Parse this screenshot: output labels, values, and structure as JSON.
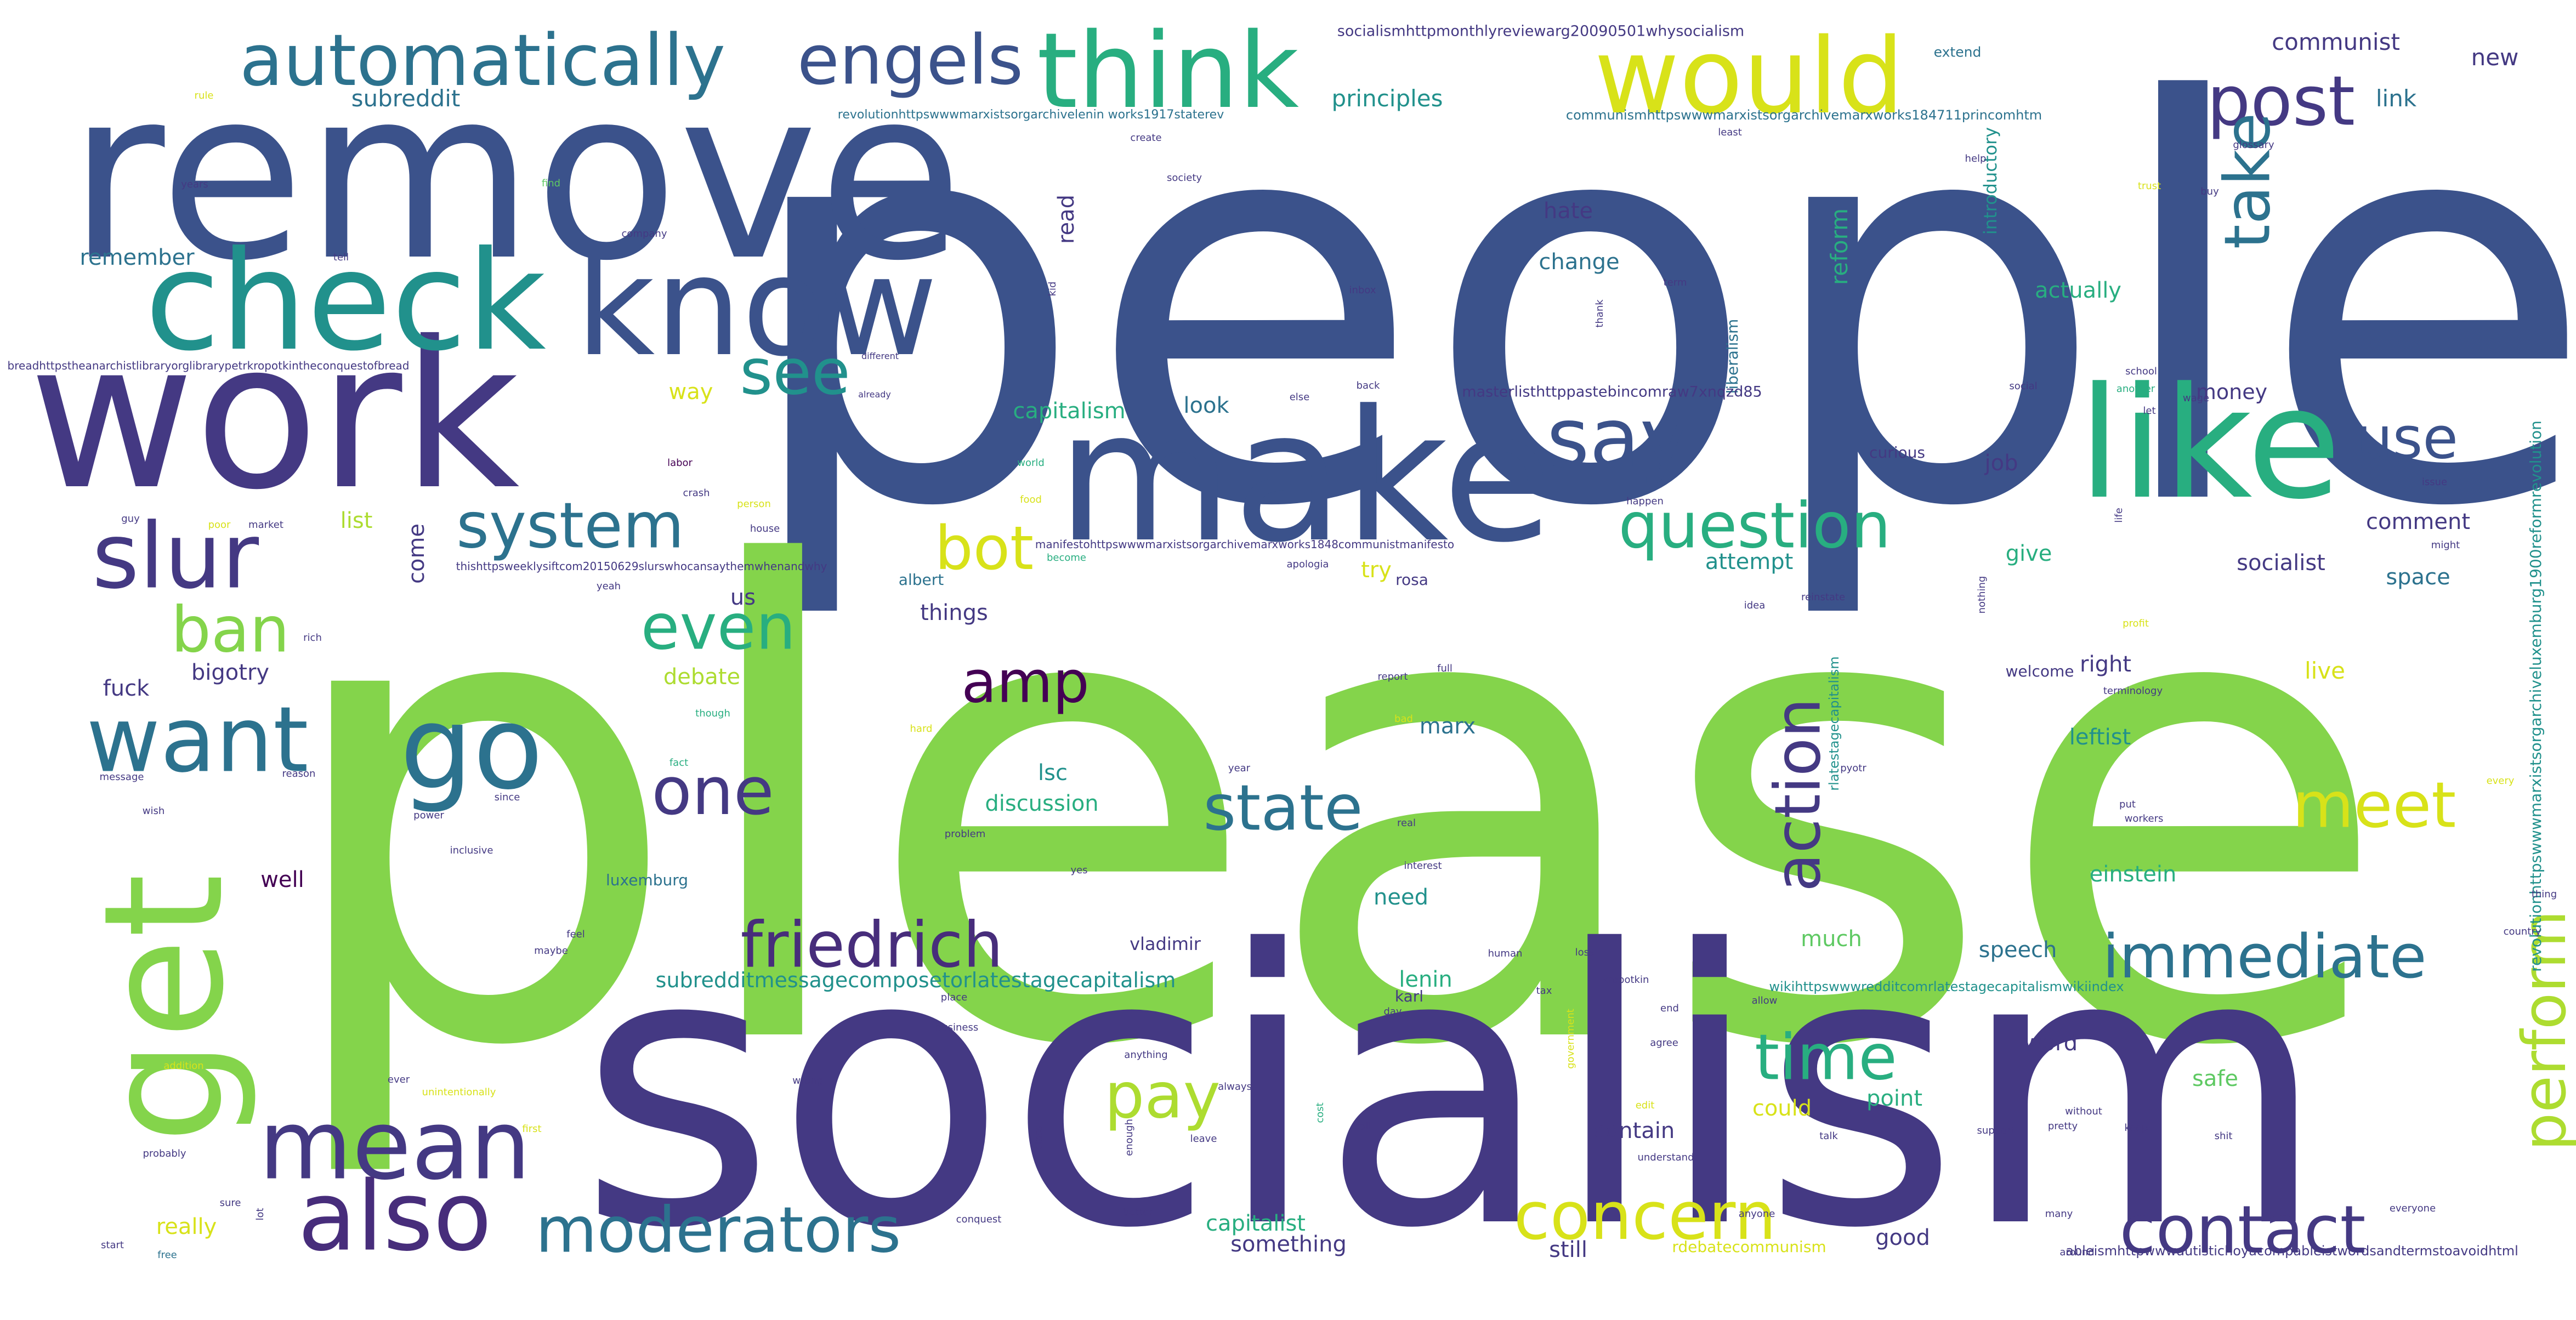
{
  "palette": {
    "background": "#ffffff",
    "colors": [
      "#3b528b",
      "#443983",
      "#2c728e",
      "#21918c",
      "#28ae80",
      "#5ec962",
      "#84d44b",
      "#addc30",
      "#d8e219",
      "#fde725",
      "#472d7b",
      "#440154"
    ]
  },
  "words": [
    {
      "text": "people",
      "c": 0
    },
    {
      "text": "please",
      "c": 6
    },
    {
      "text": "socialism",
      "c": 1
    },
    {
      "text": "remove",
      "c": 0
    },
    {
      "text": "work",
      "c": 1
    },
    {
      "text": "check",
      "c": 3
    },
    {
      "text": "know",
      "c": 0
    },
    {
      "text": "make",
      "c": 0
    },
    {
      "text": "like",
      "c": 4
    },
    {
      "text": "get",
      "c": 6
    },
    {
      "text": "would",
      "c": 8
    },
    {
      "text": "think",
      "c": 4
    },
    {
      "text": "automatically",
      "c": 2
    },
    {
      "text": "engels",
      "c": 0
    },
    {
      "text": "post",
      "c": 1
    },
    {
      "text": "say",
      "c": 0
    },
    {
      "text": "slur",
      "c": 1
    },
    {
      "text": "want",
      "c": 2
    },
    {
      "text": "go",
      "c": 2
    },
    {
      "text": "mean",
      "c": 1
    },
    {
      "text": "also",
      "c": 10
    },
    {
      "text": "moderators",
      "c": 2
    },
    {
      "text": "concern",
      "c": 8
    },
    {
      "text": "contact",
      "c": 1
    },
    {
      "text": "question",
      "c": 4
    },
    {
      "text": "use",
      "c": 0
    },
    {
      "text": "see",
      "c": 3
    },
    {
      "text": "system",
      "c": 2
    },
    {
      "text": "even",
      "c": 4
    },
    {
      "text": "bot",
      "c": 8
    },
    {
      "text": "amp",
      "c": 11
    },
    {
      "text": "one",
      "c": 1
    },
    {
      "text": "state",
      "c": 2
    },
    {
      "text": "friedrich",
      "c": 10
    },
    {
      "text": "immediate",
      "c": 2
    },
    {
      "text": "meet",
      "c": 8
    },
    {
      "text": "action",
      "c": 1
    },
    {
      "text": "take",
      "c": 2
    },
    {
      "text": "time",
      "c": 4
    },
    {
      "text": "pay",
      "c": 7
    },
    {
      "text": "perform",
      "c": 7
    },
    {
      "text": "ban",
      "c": 6
    },
    {
      "text": "socialismhttpmonthlyreviewarg20090501whysocialism",
      "c": 1
    },
    {
      "text": "communist",
      "c": 1
    },
    {
      "text": "new",
      "c": 1
    },
    {
      "text": "link",
      "c": 2
    },
    {
      "text": "subreddit",
      "c": 2
    },
    {
      "text": "principles",
      "c": 3
    },
    {
      "text": "communismhttpswwwmarxistsorgarchivemarxworks184711princomhtm",
      "c": 2
    },
    {
      "text": "revolutionhttpswwwmarxistsorgarchivelenin works1917staterev",
      "c": 2
    },
    {
      "text": "hate",
      "c": 1
    },
    {
      "text": "change",
      "c": 2
    },
    {
      "text": "reform",
      "c": 4
    },
    {
      "text": "actually",
      "c": 4
    },
    {
      "text": "introductory",
      "c": 3
    },
    {
      "text": "liberalism",
      "c": 2
    },
    {
      "text": "masterlisthttppastebincomraw7xnqzd85",
      "c": 1
    },
    {
      "text": "money",
      "c": 1
    },
    {
      "text": "capitalism",
      "c": 4
    },
    {
      "text": "look",
      "c": 2
    },
    {
      "text": "remember",
      "c": 2
    },
    {
      "text": "way",
      "c": 8
    },
    {
      "text": "read",
      "c": 1
    },
    {
      "text": "job",
      "c": 1
    },
    {
      "text": "curious",
      "c": 1
    },
    {
      "text": "comment",
      "c": 1
    },
    {
      "text": "socialist",
      "c": 1
    },
    {
      "text": "space",
      "c": 2
    },
    {
      "text": "list",
      "c": 7
    },
    {
      "text": "come",
      "c": 1
    },
    {
      "text": "us",
      "c": 1
    },
    {
      "text": "attempt",
      "c": 3
    },
    {
      "text": "give",
      "c": 4
    },
    {
      "text": "try",
      "c": 8
    },
    {
      "text": "rosa",
      "c": 1
    },
    {
      "text": "albert",
      "c": 2
    },
    {
      "text": "things",
      "c": 1
    },
    {
      "text": "bigotry",
      "c": 1
    },
    {
      "text": "fuck",
      "c": 1
    },
    {
      "text": "debate",
      "c": 7
    },
    {
      "text": "right",
      "c": 1
    },
    {
      "text": "welcome",
      "c": 1
    },
    {
      "text": "live",
      "c": 8
    },
    {
      "text": "marx",
      "c": 2
    },
    {
      "text": "leftist",
      "c": 3
    },
    {
      "text": "lsc",
      "c": 3
    },
    {
      "text": "discussion",
      "c": 4
    },
    {
      "text": "well",
      "c": 11
    },
    {
      "text": "luxemburg",
      "c": 2
    },
    {
      "text": "need",
      "c": 3
    },
    {
      "text": "einstein",
      "c": 4
    },
    {
      "text": "vladimir",
      "c": 1
    },
    {
      "text": "much",
      "c": 5
    },
    {
      "text": "speech",
      "c": 2
    },
    {
      "text": "lenin",
      "c": 4
    },
    {
      "text": "subredditmessagecomposetorlatestagecapitalism",
      "c": 3
    },
    {
      "text": "wikihttpswwwredditcomrlatestagecapitalismwikiindex",
      "c": 3
    },
    {
      "text": "karl",
      "c": 1
    },
    {
      "text": "word",
      "c": 1
    },
    {
      "text": "could",
      "c": 8
    },
    {
      "text": "point",
      "c": 4
    },
    {
      "text": "contain",
      "c": 1
    },
    {
      "text": "safe",
      "c": 5
    },
    {
      "text": "really",
      "c": 8
    },
    {
      "text": "capitalist",
      "c": 4
    },
    {
      "text": "something",
      "c": 1
    },
    {
      "text": "still",
      "c": 1
    },
    {
      "text": "good",
      "c": 1
    },
    {
      "text": "rdebatecommunism",
      "c": 8
    },
    {
      "text": "ableismhttpwwwautistichoyacompableistwordsandtermstoavoidhtml",
      "c": 1
    },
    {
      "text": "thishttpsweeklysiftcom20150629slurswhocansaythemwhenandwhy",
      "c": 1
    },
    {
      "text": "manifestohttpswwwmarxistsorgarchivemarxworks1848communistmanifesto",
      "c": 1
    },
    {
      "text": "breadhttpstheanarchistlibraryorglibrarypetrkropotkintheconquestofbread",
      "c": 1
    },
    {
      "text": "revolutionhttpswwwmarxistsorgarchiveluxemburg1900reformrevolution",
      "c": 3
    },
    {
      "text": "rlatestagecapitalism",
      "c": 3
    },
    {
      "text": "extend",
      "c": 2
    },
    {
      "text": "glossary",
      "c": 1
    },
    {
      "text": "years",
      "c": 1
    },
    {
      "text": "find",
      "c": 5
    },
    {
      "text": "society",
      "c": 1
    },
    {
      "text": "company",
      "c": 1
    },
    {
      "text": "tell",
      "c": 1
    },
    {
      "text": "kid",
      "c": 1
    },
    {
      "text": "inbox",
      "c": 1
    },
    {
      "text": "term",
      "c": 1
    },
    {
      "text": "thank",
      "c": 1
    },
    {
      "text": "school",
      "c": 1
    },
    {
      "text": "social",
      "c": 1
    },
    {
      "text": "wage",
      "c": 1
    },
    {
      "text": "another",
      "c": 4
    },
    {
      "text": "back",
      "c": 1
    },
    {
      "text": "else",
      "c": 1
    },
    {
      "text": "let",
      "c": 1
    },
    {
      "text": "labor",
      "c": 11
    },
    {
      "text": "crash",
      "c": 1
    },
    {
      "text": "person",
      "c": 8
    },
    {
      "text": "house",
      "c": 1
    },
    {
      "text": "world",
      "c": 4
    },
    {
      "text": "food",
      "c": 8
    },
    {
      "text": "guy",
      "c": 1
    },
    {
      "text": "poor",
      "c": 8
    },
    {
      "text": "market",
      "c": 1
    },
    {
      "text": "happen",
      "c": 1
    },
    {
      "text": "issue",
      "c": 1
    },
    {
      "text": "might",
      "c": 1
    },
    {
      "text": "become",
      "c": 4
    },
    {
      "text": "apologia",
      "c": 1
    },
    {
      "text": "yeah",
      "c": 1
    },
    {
      "text": "rich",
      "c": 1
    },
    {
      "text": "reinstate",
      "c": 1
    },
    {
      "text": "idea",
      "c": 1
    },
    {
      "text": "nothing",
      "c": 1
    },
    {
      "text": "profit",
      "c": 8
    },
    {
      "text": "report",
      "c": 1
    },
    {
      "text": "full",
      "c": 1
    },
    {
      "text": "bad",
      "c": 8
    },
    {
      "text": "terminology",
      "c": 1
    },
    {
      "text": "though",
      "c": 4
    },
    {
      "text": "hard",
      "c": 8
    },
    {
      "text": "message",
      "c": 1
    },
    {
      "text": "reason",
      "c": 1
    },
    {
      "text": "fact",
      "c": 4
    },
    {
      "text": "year",
      "c": 1
    },
    {
      "text": "pyotr",
      "c": 1
    },
    {
      "text": "real",
      "c": 1
    },
    {
      "text": "put",
      "c": 1
    },
    {
      "text": "workers",
      "c": 1
    },
    {
      "text": "every",
      "c": 8
    },
    {
      "text": "wish",
      "c": 1
    },
    {
      "text": "since",
      "c": 1
    },
    {
      "text": "power",
      "c": 1
    },
    {
      "text": "problem",
      "c": 1
    },
    {
      "text": "inclusive",
      "c": 1
    },
    {
      "text": "interest",
      "c": 1
    },
    {
      "text": "yes",
      "c": 1
    },
    {
      "text": "thing",
      "c": 1
    },
    {
      "text": "country",
      "c": 1
    },
    {
      "text": "feel",
      "c": 1
    },
    {
      "text": "maybe",
      "c": 1
    },
    {
      "text": "loss",
      "c": 1
    },
    {
      "text": "kropotkin",
      "c": 1
    },
    {
      "text": "human",
      "c": 1
    },
    {
      "text": "tax",
      "c": 1
    },
    {
      "text": "end",
      "c": 1
    },
    {
      "text": "allow",
      "c": 1
    },
    {
      "text": "place",
      "c": 1
    },
    {
      "text": "day",
      "c": 1
    },
    {
      "text": "business",
      "c": 1
    },
    {
      "text": "agree",
      "c": 1
    },
    {
      "text": "anything",
      "c": 1
    },
    {
      "text": "addition",
      "c": 8
    },
    {
      "text": "wrong",
      "c": 1
    },
    {
      "text": "always",
      "c": 1
    },
    {
      "text": "cost",
      "c": 4
    },
    {
      "text": "edit",
      "c": 8
    },
    {
      "text": "call",
      "c": 1
    },
    {
      "text": "class",
      "c": 1
    },
    {
      "text": "enough",
      "c": 1
    },
    {
      "text": "leave",
      "c": 1
    },
    {
      "text": "first",
      "c": 8
    },
    {
      "text": "talk",
      "c": 1
    },
    {
      "text": "understand",
      "c": 1
    },
    {
      "text": "support",
      "c": 1
    },
    {
      "text": "pretty",
      "c": 1
    },
    {
      "text": "without",
      "c": 1
    },
    {
      "text": "keep",
      "c": 1
    },
    {
      "text": "shit",
      "c": 1
    },
    {
      "text": "probably",
      "c": 1
    },
    {
      "text": "sure",
      "c": 1
    },
    {
      "text": "lot",
      "c": 1
    },
    {
      "text": "start",
      "c": 1
    },
    {
      "text": "free",
      "c": 2
    },
    {
      "text": "conquest",
      "c": 1
    },
    {
      "text": "better",
      "c": 1
    },
    {
      "text": "anyone",
      "c": 1
    },
    {
      "text": "many",
      "c": 1
    },
    {
      "text": "around",
      "c": 1
    },
    {
      "text": "everyone",
      "c": 1
    },
    {
      "text": "ever",
      "c": 1
    },
    {
      "text": "rule",
      "c": 8
    },
    {
      "text": "create",
      "c": 1
    },
    {
      "text": "least",
      "c": 1
    },
    {
      "text": "help",
      "c": 1
    },
    {
      "text": "buy",
      "c": 1
    },
    {
      "text": "life",
      "c": 1
    },
    {
      "text": "trust",
      "c": 8
    },
    {
      "text": "already",
      "c": 1
    },
    {
      "text": "different",
      "c": 1
    },
    {
      "text": "unintentionally",
      "c": 8
    },
    {
      "text": "government",
      "c": 8
    }
  ]
}
